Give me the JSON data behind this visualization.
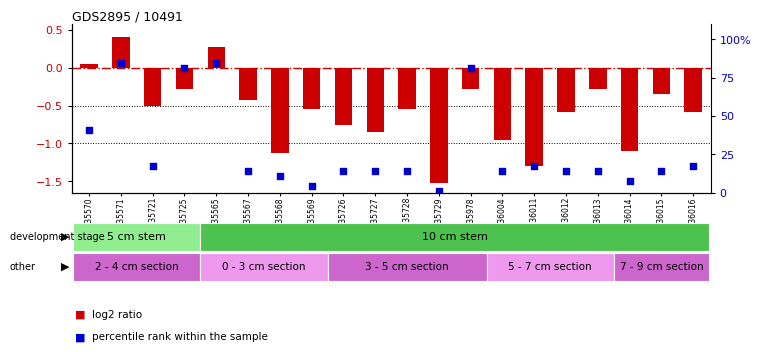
{
  "title": "GDS2895 / 10491",
  "samples": [
    "GSM35570",
    "GSM35571",
    "GSM35721",
    "GSM35725",
    "GSM35565",
    "GSM35567",
    "GSM35568",
    "GSM35569",
    "GSM35726",
    "GSM35727",
    "GSM35728",
    "GSM35729",
    "GSM35978",
    "GSM36004",
    "GSM36011",
    "GSM36012",
    "GSM36013",
    "GSM36014",
    "GSM36015",
    "GSM36016"
  ],
  "log2_ratio": [
    0.05,
    0.4,
    -0.5,
    -0.28,
    0.27,
    -0.43,
    -1.12,
    -0.55,
    -0.75,
    -0.85,
    -0.55,
    -1.52,
    -0.28,
    -0.95,
    -1.3,
    -0.58,
    -0.28,
    -1.1,
    -0.35,
    -0.58
  ],
  "pct_rank": [
    37,
    77,
    16,
    74,
    77,
    13,
    10,
    4,
    13,
    13,
    13,
    1,
    74,
    13,
    16,
    13,
    13,
    7,
    13,
    16
  ],
  "bar_color": "#cc0000",
  "dot_color": "#0000cc",
  "bg_color": "#ffffff",
  "dash_color": "#cc0000",
  "ylim_left": [
    -1.65,
    0.58
  ],
  "ylim_right": [
    0,
    110
  ],
  "yticks_left": [
    -1.5,
    -1.0,
    -0.5,
    0.0,
    0.5
  ],
  "yticks_right": [
    0,
    25,
    50,
    75,
    100
  ],
  "dev_stage_groups": [
    {
      "label": "5 cm stem",
      "start": 0,
      "end": 4,
      "color": "#90ee90"
    },
    {
      "label": "10 cm stem",
      "start": 4,
      "end": 20,
      "color": "#4ec24e"
    }
  ],
  "other_groups": [
    {
      "label": "2 - 4 cm section",
      "start": 0,
      "end": 4,
      "color": "#cc66cc"
    },
    {
      "label": "0 - 3 cm section",
      "start": 4,
      "end": 8,
      "color": "#ee99ee"
    },
    {
      "label": "3 - 5 cm section",
      "start": 8,
      "end": 13,
      "color": "#cc66cc"
    },
    {
      "label": "5 - 7 cm section",
      "start": 13,
      "end": 17,
      "color": "#ee99ee"
    },
    {
      "label": "7 - 9 cm section",
      "start": 17,
      "end": 20,
      "color": "#cc66cc"
    }
  ],
  "legend_red": "log2 ratio",
  "legend_blue": "percentile rank within the sample"
}
